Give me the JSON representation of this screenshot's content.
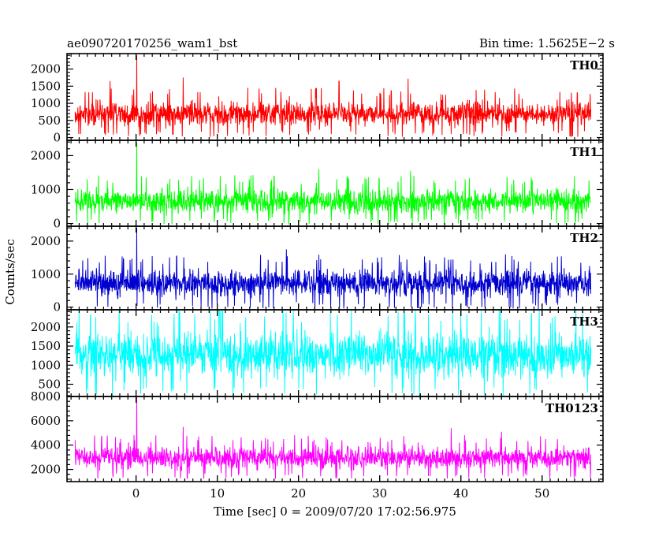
{
  "chart_data": {
    "type": "line",
    "title_left": "ae090720170256_wam1_bst",
    "title_right": "Bin time: 1.5625E−2 s",
    "xlabel": "Time [sec] 0 = 2009/07/20 17:02:56.975",
    "ylabel": "Counts/sec",
    "xlim": [
      -8.5,
      57.5
    ],
    "x_ticks": [
      0,
      10,
      20,
      30,
      40,
      50
    ],
    "x_tick_labels": [
      "0",
      "10",
      "20",
      "30",
      "40",
      "50"
    ],
    "data_x_range": [
      -7.5,
      56
    ],
    "panels": [
      {
        "name": "TH0",
        "color": "#ff0000",
        "ylim": [
          -80,
          2450
        ],
        "ticks": [
          0,
          500,
          1000,
          1500,
          2000
        ],
        "tick_labels": [
          "0",
          "500",
          "1000",
          "1500",
          "2000"
        ],
        "typical_mean": 650,
        "typical_low": 200,
        "typical_high": 1200,
        "spikes": [
          {
            "x": 0.1,
            "y": 2400
          },
          {
            "x": -3.2,
            "y": 1650
          },
          {
            "x": 5.8,
            "y": 1750
          },
          {
            "x": 25,
            "y": 1650
          },
          {
            "x": 33.5,
            "y": 1720
          }
        ]
      },
      {
        "name": "TH1",
        "color": "#00ff00",
        "ylim": [
          -80,
          2450
        ],
        "ticks": [
          0,
          1000,
          2000
        ],
        "tick_labels": [
          "0",
          "1000",
          "2000"
        ],
        "typical_mean": 600,
        "typical_low": 150,
        "typical_high": 1150,
        "spikes": [
          {
            "x": 0.1,
            "y": 2400
          },
          {
            "x": 22.5,
            "y": 1600
          },
          {
            "x": 33.8,
            "y": 1550
          },
          {
            "x": 17,
            "y": 1400
          }
        ]
      },
      {
        "name": "TH2",
        "color": "#0000d0",
        "ylim": [
          -80,
          2450
        ],
        "ticks": [
          0,
          1000,
          2000
        ],
        "tick_labels": [
          "0",
          "1000",
          "2000"
        ],
        "typical_mean": 700,
        "typical_low": 150,
        "typical_high": 1300,
        "spikes": [
          {
            "x": 0.1,
            "y": 2400
          },
          {
            "x": 18.5,
            "y": 1750
          },
          {
            "x": 5,
            "y": 1550
          },
          {
            "x": 45.5,
            "y": 1600
          }
        ]
      },
      {
        "name": "TH3",
        "color": "#00ffff",
        "ylim": [
          180,
          2450
        ],
        "ticks": [
          500,
          1000,
          1500,
          2000
        ],
        "tick_labels": [
          "500",
          "1000",
          "1500",
          "2000"
        ],
        "typical_mean": 1250,
        "typical_low": 450,
        "typical_high": 2100,
        "spikes": [
          {
            "x": 5.3,
            "y": 2450
          },
          {
            "x": 10.2,
            "y": 2420
          },
          {
            "x": 26.5,
            "y": 2450
          },
          {
            "x": 39,
            "y": 2450
          },
          {
            "x": 42.5,
            "y": 2420
          },
          {
            "x": 55,
            "y": 2450
          }
        ]
      },
      {
        "name": "TH0123",
        "color": "#ff00ff",
        "ylim": [
          1000,
          8000
        ],
        "ticks": [
          2000,
          4000,
          6000,
          8000
        ],
        "tick_labels": [
          "2000",
          "4000",
          "6000",
          "8000"
        ],
        "typical_mean": 2950,
        "typical_low": 1700,
        "typical_high": 4200,
        "spikes": [
          {
            "x": 0.1,
            "y": 8000
          },
          {
            "x": 5.8,
            "y": 5500
          },
          {
            "x": 38.8,
            "y": 5400
          },
          {
            "x": 45,
            "y": 5100
          }
        ]
      }
    ]
  }
}
